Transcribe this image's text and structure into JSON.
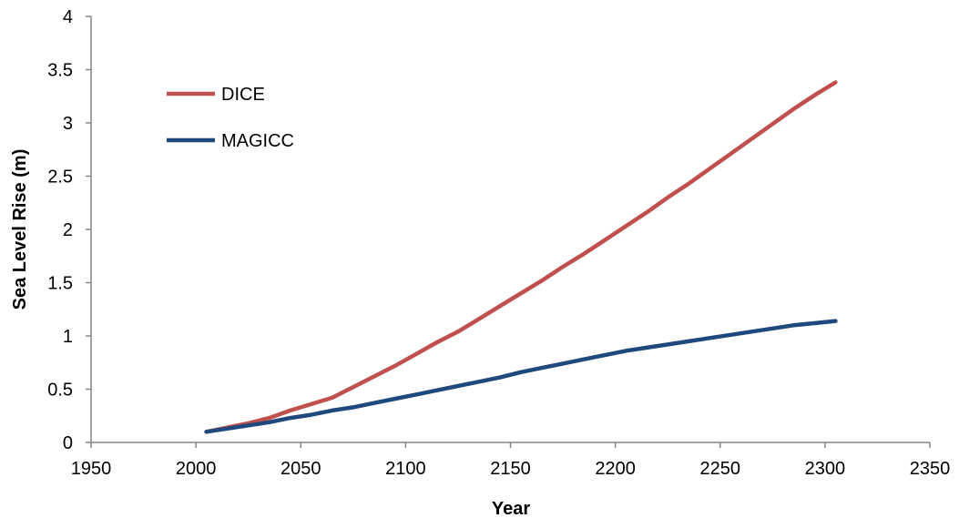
{
  "chart_data": {
    "type": "line",
    "title": "",
    "xlabel": "Year",
    "ylabel": "Sea Level Rise (m)",
    "xlim": [
      1950,
      2350
    ],
    "ylim": [
      0,
      4
    ],
    "xticks": [
      1950,
      2000,
      2050,
      2100,
      2150,
      2200,
      2250,
      2300,
      2350
    ],
    "yticks": [
      0,
      0.5,
      1,
      1.5,
      2,
      2.5,
      3,
      3.5,
      4
    ],
    "grid": false,
    "legend_position": "top-left",
    "series": [
      {
        "name": "DICE",
        "color": "#c0504d",
        "x": [
          2005,
          2015,
          2025,
          2035,
          2045,
          2055,
          2065,
          2075,
          2085,
          2095,
          2105,
          2115,
          2125,
          2135,
          2145,
          2155,
          2165,
          2175,
          2185,
          2195,
          2205,
          2215,
          2225,
          2235,
          2245,
          2255,
          2265,
          2275,
          2285,
          2295,
          2305
        ],
        "y": [
          0.1,
          0.14,
          0.18,
          0.23,
          0.3,
          0.36,
          0.42,
          0.52,
          0.62,
          0.72,
          0.83,
          0.94,
          1.04,
          1.16,
          1.28,
          1.4,
          1.52,
          1.65,
          1.77,
          1.9,
          2.03,
          2.16,
          2.3,
          2.43,
          2.57,
          2.71,
          2.85,
          2.99,
          3.13,
          3.26,
          3.38
        ]
      },
      {
        "name": "MAGICC",
        "color": "#1f497d",
        "x": [
          2005,
          2015,
          2025,
          2035,
          2045,
          2055,
          2065,
          2075,
          2085,
          2095,
          2105,
          2115,
          2125,
          2135,
          2145,
          2155,
          2165,
          2175,
          2185,
          2195,
          2205,
          2215,
          2225,
          2235,
          2245,
          2255,
          2265,
          2275,
          2285,
          2295,
          2305
        ],
        "y": [
          0.1,
          0.13,
          0.16,
          0.19,
          0.23,
          0.26,
          0.3,
          0.33,
          0.37,
          0.41,
          0.45,
          0.49,
          0.53,
          0.57,
          0.61,
          0.66,
          0.7,
          0.74,
          0.78,
          0.82,
          0.86,
          0.89,
          0.92,
          0.95,
          0.98,
          1.01,
          1.04,
          1.07,
          1.1,
          1.12,
          1.14
        ]
      }
    ]
  }
}
